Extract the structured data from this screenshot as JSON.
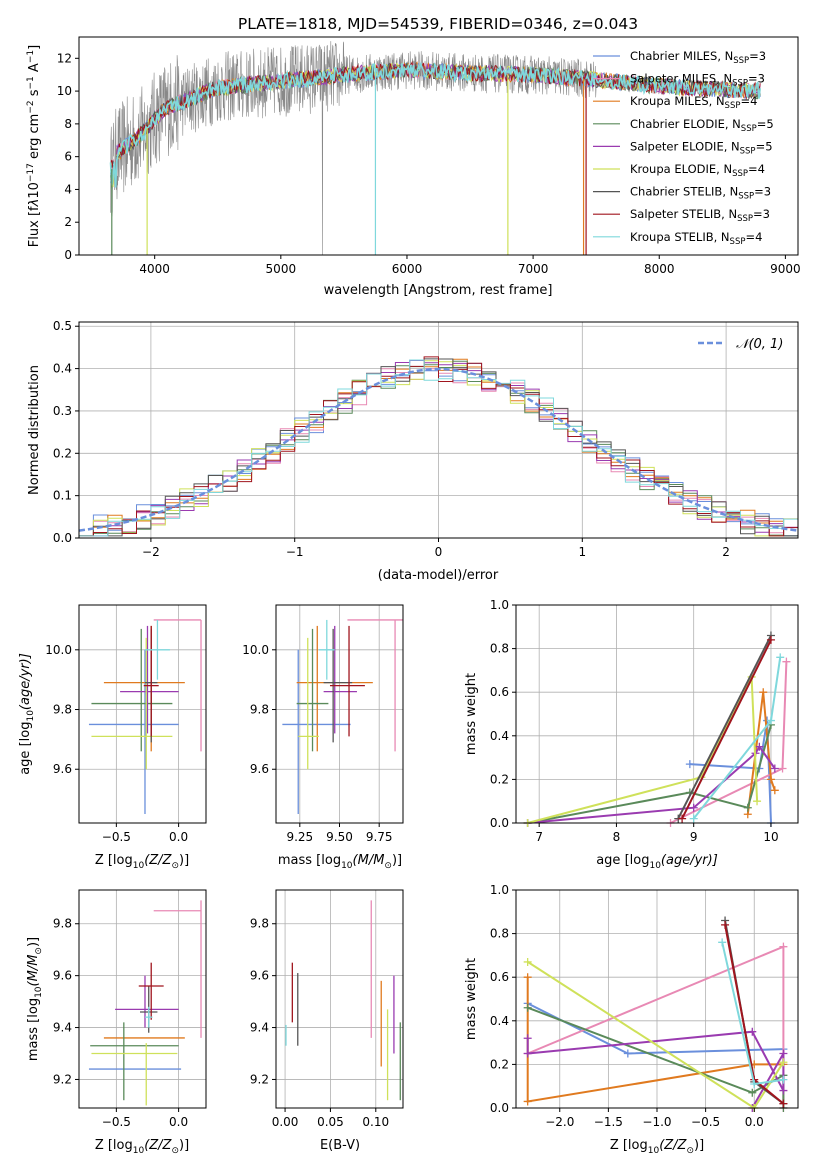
{
  "figure": {
    "title": "PLATE=1818, MJD=54539, FIBERID=0346, z=0.043"
  },
  "colors": {
    "chabrier_miles": "#6a8fdc",
    "salpeter_miles": "#e889b4",
    "kroupa_miles": "#e07a1f",
    "chabrier_elodie": "#5a8a5a",
    "salpeter_elodie": "#9a3bb0",
    "kroupa_elodie": "#cfe15a",
    "chabrier_stelib": "#555555",
    "salpeter_stelib": "#a0151e",
    "kroupa_stelib": "#7fd8dc",
    "data_gray": "#888888",
    "gauss": "#6a8fdc"
  },
  "legend_spectrum": {
    "chabrier_miles": {
      "main": "Chabrier MILES, N",
      "sub": "SSP",
      "tail": "=3"
    },
    "salpeter_miles": {
      "main": "Salpeter MILES, N",
      "sub": "SSP",
      "tail": "=3"
    },
    "kroupa_miles": {
      "main": "Kroupa MILES, N",
      "sub": "SSP",
      "tail": "=4"
    },
    "chabrier_elodie": {
      "main": "Chabrier ELODIE, N",
      "sub": "SSP",
      "tail": "=5"
    },
    "salpeter_elodie": {
      "main": "Salpeter ELODIE, N",
      "sub": "SSP",
      "tail": "=5"
    },
    "kroupa_elodie": {
      "main": "Kroupa ELODIE, N",
      "sub": "SSP",
      "tail": "=4"
    },
    "chabrier_stelib": {
      "main": "Chabrier STELIB, N",
      "sub": "SSP",
      "tail": "=3"
    },
    "salpeter_stelib": {
      "main": "Salpeter STELIB, N",
      "sub": "SSP",
      "tail": "=3"
    },
    "kroupa_stelib": {
      "main": "Kroupa STELIB, N",
      "sub": "SSP",
      "tail": "=4"
    }
  },
  "legend_hist": {
    "gauss_label": "𝒩(0, 1)"
  },
  "chart_data": [
    {
      "type": "line",
      "name": "spectrum",
      "xlabel": "wavelength [Angstrom, rest frame]",
      "ylabel_parts": {
        "a": "Flux [f",
        "b": "λ",
        "c": "10",
        "d": "−17",
        "e": " erg cm",
        "f": "−2",
        "g": " s",
        "h": "−1",
        "i": " A",
        "j": "−1",
        "k": "]"
      },
      "xlim": [
        3400,
        9100
      ],
      "ylim": [
        0,
        13.3
      ],
      "xticks": [
        4000,
        5000,
        6000,
        7000,
        8000,
        9000
      ],
      "yticks": [
        0,
        2,
        4,
        6,
        8,
        10,
        12
      ],
      "approx_continuum": {
        "x": [
          3650,
          3700,
          3800,
          3900,
          4000,
          4100,
          4300,
          4500,
          5000,
          5500,
          6000,
          6500,
          7000,
          7500,
          8000,
          8500,
          8800
        ],
        "y": [
          5.0,
          6.2,
          6.8,
          7.4,
          8.3,
          9.0,
          9.6,
          10.2,
          10.6,
          11.0,
          11.3,
          11.1,
          11.0,
          10.7,
          10.3,
          10.1,
          10.0
        ]
      }
    },
    {
      "type": "line",
      "name": "residual-histogram",
      "xlabel": "(data-model)/error",
      "ylabel": "Normed distribution",
      "xlim": [
        -2.5,
        2.5
      ],
      "ylim": [
        0,
        0.51
      ],
      "xticks": [
        -2,
        -1,
        0,
        1,
        2
      ],
      "yticks": [
        0.0,
        0.1,
        0.2,
        0.3,
        0.4,
        0.5
      ],
      "bin_width": 0.1,
      "bin_start": -2.5
    },
    {
      "type": "scatter",
      "name": "age-vs-Z",
      "xlabel_parts": {
        "a": "Z [log",
        "b": "10",
        "c": "(Z/Z",
        "d": "⊙",
        "e": ")]"
      },
      "ylabel_parts": {
        "a": "age  [log",
        "b": "10",
        "c": "(age/yr)]"
      },
      "xlim": [
        -0.8,
        0.22
      ],
      "ylim": [
        9.42,
        10.15
      ],
      "xticks": [
        -0.5,
        0.0
      ],
      "yticks": [
        9.6,
        9.8,
        10.0
      ],
      "points": [
        {
          "series": "chabrier_miles",
          "x": -0.27,
          "y": 9.75,
          "xerr": [
            0.45,
            0.27
          ],
          "yerr": [
            0.3,
            0.25
          ]
        },
        {
          "series": "salpeter_miles",
          "x": 0.18,
          "y": 10.1,
          "xerr": [
            0.38,
            0.0
          ],
          "yerr": [
            0.44,
            0.0
          ]
        },
        {
          "series": "kroupa_miles",
          "x": -0.22,
          "y": 9.89,
          "xerr": [
            0.38,
            0.27
          ],
          "yerr": [
            0.23,
            0.19
          ]
        },
        {
          "series": "chabrier_elodie",
          "x": -0.3,
          "y": 9.82,
          "xerr": [
            0.4,
            0.25
          ],
          "yerr": [
            0.16,
            0.25
          ]
        },
        {
          "series": "salpeter_elodie",
          "x": -0.25,
          "y": 9.86,
          "xerr": [
            0.22,
            0.25
          ],
          "yerr": [
            0.14,
            0.22
          ]
        },
        {
          "series": "kroupa_elodie",
          "x": -0.26,
          "y": 9.71,
          "xerr": [
            0.44,
            0.21
          ],
          "yerr": [
            0.11,
            0.33
          ]
        },
        {
          "series": "chabrier_stelib",
          "x": -0.22,
          "y": 9.89,
          "xerr": [
            0.05,
            0.05
          ],
          "yerr": [
            0.2,
            0.18
          ]
        },
        {
          "series": "salpeter_stelib",
          "x": -0.22,
          "y": 9.88,
          "xerr": [
            0.06,
            0.06
          ],
          "yerr": [
            0.17,
            0.2
          ]
        },
        {
          "series": "kroupa_stelib",
          "x": -0.17,
          "y": 10.0,
          "xerr": [
            0.1,
            0.1
          ],
          "yerr": [
            0.1,
            0.1
          ]
        }
      ]
    },
    {
      "type": "scatter",
      "name": "age-vs-mass",
      "xlabel_parts": {
        "a": "mass [log",
        "b": "10",
        "c": "(M/M",
        "d": "⊙",
        "e": ")]"
      },
      "xlim": [
        9.1,
        9.9
      ],
      "ylim": [
        9.42,
        10.15
      ],
      "xticks": [
        9.25,
        9.5,
        9.75
      ],
      "yticks": [
        9.6,
        9.8,
        10.0
      ],
      "points": [
        {
          "series": "chabrier_miles",
          "x": 9.24,
          "y": 9.75,
          "xerr": [
            0.1,
            0.33
          ],
          "yerr": [
            0.3,
            0.25
          ]
        },
        {
          "series": "salpeter_miles",
          "x": 9.85,
          "y": 10.1,
          "xerr": [
            0.3,
            0.06
          ],
          "yerr": [
            0.44,
            0.0
          ]
        },
        {
          "series": "kroupa_miles",
          "x": 9.36,
          "y": 9.89,
          "xerr": [
            0.13,
            0.35
          ],
          "yerr": [
            0.23,
            0.19
          ]
        },
        {
          "series": "chabrier_elodie",
          "x": 9.33,
          "y": 9.82,
          "xerr": [
            0.1,
            0.1
          ],
          "yerr": [
            0.16,
            0.25
          ]
        },
        {
          "series": "salpeter_elodie",
          "x": 9.47,
          "y": 9.86,
          "xerr": [
            0.07,
            0.14
          ],
          "yerr": [
            0.14,
            0.22
          ]
        },
        {
          "series": "kroupa_elodie",
          "x": 9.3,
          "y": 9.71,
          "xerr": [
            0.06,
            0.07
          ],
          "yerr": [
            0.11,
            0.33
          ]
        },
        {
          "series": "chabrier_stelib",
          "x": 9.46,
          "y": 9.89,
          "xerr": [
            0.06,
            0.12
          ],
          "yerr": [
            0.2,
            0.18
          ]
        },
        {
          "series": "salpeter_stelib",
          "x": 9.56,
          "y": 9.88,
          "xerr": [
            0.12,
            0.1
          ],
          "yerr": [
            0.17,
            0.2
          ]
        },
        {
          "series": "kroupa_stelib",
          "x": 9.42,
          "y": 10.0,
          "xerr": [
            0.05,
            0.05
          ],
          "yerr": [
            0.1,
            0.1
          ]
        }
      ]
    },
    {
      "type": "line",
      "name": "mass-weight-vs-age",
      "xlabel_parts": {
        "a": "age  [log",
        "b": "10",
        "c": "(age/yr)]"
      },
      "ylabel": "mass weight",
      "xlim": [
        6.7,
        10.35
      ],
      "ylim": [
        0,
        1.0
      ],
      "xticks": [
        7,
        8,
        9,
        10
      ],
      "yticks": [
        0.0,
        0.2,
        0.4,
        0.6,
        0.8,
        1.0
      ],
      "series": [
        {
          "key": "chabrier_miles",
          "x": [
            8.95,
            9.85,
            9.95,
            10.0
          ],
          "y": [
            0.27,
            0.25,
            0.47,
            0.0
          ]
        },
        {
          "key": "salpeter_miles",
          "x": [
            8.7,
            10.15,
            10.2
          ],
          "y": [
            0.0,
            0.25,
            0.74
          ]
        },
        {
          "key": "kroupa_miles",
          "x": [
            9.7,
            9.9,
            10.0,
            10.05
          ],
          "y": [
            0.04,
            0.6,
            0.2,
            0.15
          ]
        },
        {
          "key": "chabrier_elodie",
          "x": [
            6.85,
            8.95,
            9.7,
            10.0
          ],
          "y": [
            0.0,
            0.14,
            0.07,
            0.45
          ]
        },
        {
          "key": "salpeter_elodie",
          "x": [
            6.85,
            9.0,
            9.8,
            9.85,
            10.05
          ],
          "y": [
            0.0,
            0.07,
            0.32,
            0.35,
            0.25
          ]
        },
        {
          "key": "kroupa_elodie",
          "x": [
            6.85,
            9.1,
            9.75,
            9.82
          ],
          "y": [
            0.0,
            0.21,
            0.67,
            0.1
          ]
        },
        {
          "key": "chabrier_stelib",
          "x": [
            8.8,
            10.0
          ],
          "y": [
            0.02,
            0.86
          ]
        },
        {
          "key": "salpeter_stelib",
          "x": [
            8.85,
            10.0
          ],
          "y": [
            0.02,
            0.84
          ]
        },
        {
          "key": "kroupa_stelib",
          "x": [
            9.0,
            10.0,
            10.12
          ],
          "y": [
            0.02,
            0.47,
            0.76
          ]
        }
      ]
    },
    {
      "type": "scatter",
      "name": "mass-vs-Z",
      "xlabel_parts": {
        "a": "Z [log",
        "b": "10",
        "c": "(Z/Z",
        "d": "⊙",
        "e": ")]"
      },
      "ylabel_parts": {
        "a": "mass [log",
        "b": "10",
        "c": "(M/M",
        "d": "⊙",
        "e": ")]"
      },
      "xlim": [
        -0.8,
        0.22
      ],
      "ylim": [
        9.09,
        9.93
      ],
      "xticks": [
        -0.5,
        0.0
      ],
      "yticks": [
        9.2,
        9.4,
        9.6,
        9.8
      ],
      "points": [
        {
          "series": "chabrier_miles",
          "x": -0.25,
          "y": 9.24,
          "xerr": [
            0.47,
            0.27
          ],
          "yerr": [
            0.0,
            0.0
          ]
        },
        {
          "series": "salpeter_miles",
          "x": 0.18,
          "y": 9.85,
          "xerr": [
            0.38,
            0.0
          ],
          "yerr": [
            0.49,
            0.04
          ]
        },
        {
          "series": "kroupa_miles",
          "x": -0.22,
          "y": 9.36,
          "xerr": [
            0.38,
            0.27
          ],
          "yerr": [
            0.0,
            0.0
          ]
        },
        {
          "series": "chabrier_elodie",
          "x": -0.44,
          "y": 9.33,
          "xerr": [
            0.27,
            0.44
          ],
          "yerr": [
            0.21,
            0.09
          ]
        },
        {
          "series": "salpeter_elodie",
          "x": -0.27,
          "y": 9.47,
          "xerr": [
            0.24,
            0.27
          ],
          "yerr": [
            0.07,
            0.13
          ]
        },
        {
          "series": "kroupa_elodie",
          "x": -0.26,
          "y": 9.3,
          "xerr": [
            0.44,
            0.25
          ],
          "yerr": [
            0.2,
            0.04
          ]
        },
        {
          "series": "chabrier_stelib",
          "x": -0.24,
          "y": 9.46,
          "xerr": [
            0.07,
            0.07
          ],
          "yerr": [
            0.08,
            0.1
          ]
        },
        {
          "series": "salpeter_stelib",
          "x": -0.22,
          "y": 9.56,
          "xerr": [
            0.1,
            0.1
          ],
          "yerr": [
            0.13,
            0.09
          ]
        },
        {
          "series": "kroupa_stelib",
          "x": -0.24,
          "y": 9.44,
          "xerr": [
            0.03,
            0.03
          ],
          "yerr": [
            0.04,
            0.04
          ]
        }
      ]
    },
    {
      "type": "scatter",
      "name": "mass-vs-EBV",
      "xlabel": "E(B-V)",
      "xlim": [
        -0.01,
        0.13
      ],
      "ylim": [
        9.09,
        9.93
      ],
      "xticks": [
        0.0,
        0.05,
        0.1
      ],
      "yticks": [
        9.2,
        9.4,
        9.6,
        9.8
      ],
      "points": [
        {
          "series": "kroupa_stelib",
          "x": 0.001,
          "y": 9.33,
          "yerr": [
            0.0,
            0.08
          ]
        },
        {
          "series": "salpeter_stelib",
          "x": 0.008,
          "y": 9.54,
          "yerr": [
            0.12,
            0.11
          ]
        },
        {
          "series": "chabrier_stelib",
          "x": 0.014,
          "y": 9.47,
          "yerr": [
            0.14,
            0.14
          ]
        },
        {
          "series": "salpeter_miles",
          "x": 0.095,
          "y": 9.63,
          "yerr": [
            0.27,
            0.26
          ]
        },
        {
          "series": "kroupa_miles",
          "x": 0.106,
          "y": 9.37,
          "yerr": [
            0.12,
            0.21
          ]
        },
        {
          "series": "kroupa_elodie",
          "x": 0.113,
          "y": 9.3,
          "yerr": [
            0.18,
            0.17
          ]
        },
        {
          "series": "salpeter_elodie",
          "x": 0.12,
          "y": 9.46,
          "yerr": [
            0.16,
            0.14
          ]
        },
        {
          "series": "chabrier_elodie",
          "x": 0.127,
          "y": 9.3,
          "yerr": [
            0.18,
            0.12
          ]
        }
      ]
    },
    {
      "type": "line",
      "name": "mass-weight-vs-Z",
      "xlabel_parts": {
        "a": "Z [log",
        "b": "10",
        "c": "(Z/Z",
        "d": "⊙",
        "e": ")]"
      },
      "ylabel": "mass weight",
      "xlim": [
        -2.45,
        0.45
      ],
      "ylim": [
        0,
        1.0
      ],
      "xticks": [
        -2.0,
        -1.5,
        -1.0,
        -0.5,
        0.0
      ],
      "yticks": [
        0.0,
        0.2,
        0.4,
        0.6,
        0.8,
        1.0
      ],
      "series": [
        {
          "key": "chabrier_miles",
          "x": [
            -2.33,
            -1.3,
            0.3
          ],
          "y": [
            0.48,
            0.25,
            0.27
          ]
        },
        {
          "key": "salpeter_miles",
          "x": [
            -2.33,
            0.3,
            0.3
          ],
          "y": [
            0.25,
            0.74,
            0.0
          ]
        },
        {
          "key": "kroupa_miles",
          "x": [
            -2.33,
            -2.33,
            0.0,
            0.3
          ],
          "y": [
            0.6,
            0.03,
            0.2,
            0.2
          ]
        },
        {
          "key": "chabrier_elodie",
          "x": [
            -2.33,
            -0.02,
            0.3,
            0.3
          ],
          "y": [
            0.46,
            0.07,
            0.15,
            0.0
          ]
        },
        {
          "key": "salpeter_elodie",
          "x": [
            -2.33,
            -2.33,
            -0.02,
            0.3,
            0.3,
            -0.02
          ],
          "y": [
            0.32,
            0.25,
            0.35,
            0.08,
            0.25,
            0.0
          ]
        },
        {
          "key": "kroupa_elodie",
          "x": [
            -2.33,
            0.0,
            0.3,
            0.0
          ],
          "y": [
            0.67,
            0.0,
            0.21,
            0.0
          ]
        },
        {
          "key": "chabrier_stelib",
          "x": [
            -0.3,
            0.0,
            0.3
          ],
          "y": [
            0.86,
            0.12,
            0.02
          ]
        },
        {
          "key": "salpeter_stelib",
          "x": [
            -0.3,
            0.0,
            0.3
          ],
          "y": [
            0.84,
            0.13,
            0.02
          ]
        },
        {
          "key": "kroupa_stelib",
          "x": [
            -0.33,
            0.0,
            0.3
          ],
          "y": [
            0.76,
            0.11,
            0.13
          ]
        }
      ]
    }
  ]
}
